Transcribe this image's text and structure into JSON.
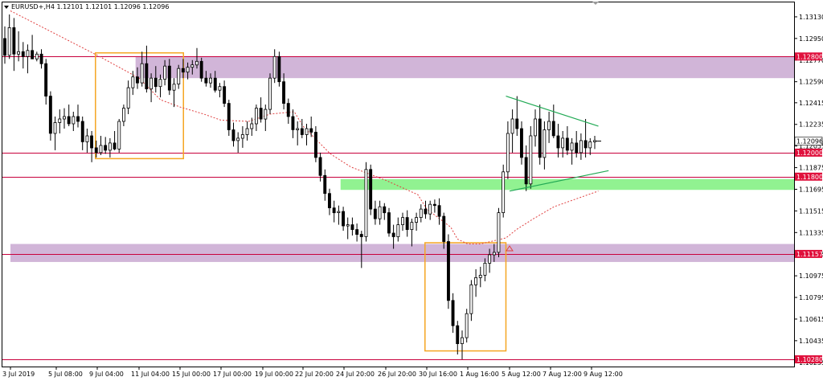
{
  "header": {
    "symbol_line": "EURUSD+,H4  1.12101 1.12101 1.12096 1.12096"
  },
  "colors": {
    "bull_fill": "#ffffff",
    "bear_fill": "#000000",
    "candle_line": "#000000",
    "zone_fill": "#c9a8d1",
    "support_zone_fill": "#7ef07e",
    "level_line": "#c8003c",
    "box_stroke": "#f5a623",
    "triangle_line": "#22aa55",
    "ma_line": "#e04040",
    "price_tag_red": "#e0103c",
    "grid_line": "#000000"
  },
  "chart_data": {
    "type": "candlestick",
    "title": "EURUSD+,H4",
    "ohlc_header": {
      "open": 1.12101,
      "high": 1.12101,
      "low": 1.12096,
      "close": 1.12096
    },
    "current_price": 1.12096,
    "ylim": [
      1.1022,
      1.1325
    ],
    "y_ticks": [
      "1.13130",
      "1.12950",
      "1.12770",
      "1.12590",
      "1.12415",
      "1.12235",
      "1.12055",
      "1.11875",
      "1.11695",
      "1.11515",
      "1.11335",
      "1.11155",
      "1.10975",
      "1.10795",
      "1.10615",
      "1.10435",
      "1.10255"
    ],
    "x_ticks": [
      "3 Jul 2019",
      "5 Jul 08:00",
      "9 Jul 04:00",
      "11 Jul 04:00",
      "15 Jul 00:00",
      "17 Jul 00:00",
      "19 Jul 00:00",
      "22 Jul 20:00",
      "24 Jul 20:00",
      "26 Jul 20:00",
      "30 Jul 16:00",
      "1 Aug 16:00",
      "5 Aug 12:00",
      "7 Aug 12:00",
      "9 Aug 12:00"
    ],
    "levels": [
      {
        "label": "1.12800",
        "value": 1.128
      },
      {
        "label": "1.12000",
        "value": 1.12
      },
      {
        "label": "1.11800",
        "value": 1.118
      },
      {
        "label": "1.11157",
        "value": 1.11157
      },
      {
        "label": "1.10280",
        "value": 1.1028
      }
    ],
    "zones": [
      {
        "name": "resistance-zone",
        "from": 1.1262,
        "to": 1.128,
        "start_date": "11 Jul 00:00"
      },
      {
        "name": "support-zone",
        "from": 1.1169,
        "to": 1.1178,
        "start_date": "24 Jul 16:00"
      },
      {
        "name": "lower-zone",
        "from": 1.1109,
        "to": 1.1124,
        "start_date": "3 Jul 2019"
      }
    ],
    "boxes": [
      {
        "name": "left-consolidation-box",
        "from_date": "9 Jul 00:00",
        "to_date": "15 Jul 04:00",
        "low": 1.1195,
        "high": 1.1283
      },
      {
        "name": "bottom-reversal-box",
        "from_date": "30 Jul 12:00",
        "to_date": "5 Aug 04:00",
        "low": 1.1035,
        "high": 1.1125
      }
    ],
    "triangle": {
      "upper": [
        {
          "date": "5 Aug 04:00",
          "price": 1.1247
        },
        {
          "date": "9 Aug 20:00",
          "price": 1.1222
        }
      ],
      "lower": [
        {
          "date": "5 Aug 12:00",
          "price": 1.1168
        },
        {
          "date": "10 Aug 08:00",
          "price": 1.1185
        }
      ]
    },
    "moving_average_points": [
      [
        "3 Jul 2019",
        1.1318
      ],
      [
        "9 Jul 04:00",
        1.1281
      ],
      [
        "11 Jul 04:00",
        1.1262
      ],
      [
        "13 Jul 04:00",
        1.1244
      ],
      [
        "15 Jul 00:00",
        1.1238
      ],
      [
        "16 Jul 04:00",
        1.1232
      ],
      [
        "17 Jul 00:00",
        1.1227
      ],
      [
        "18 Jul 08:00",
        1.1226
      ],
      [
        "19 Jul 16:00",
        1.1232
      ],
      [
        "22 Jul 00:00",
        1.1234
      ],
      [
        "22 Jul 20:00",
        1.1222
      ],
      [
        "24 Jul 04:00",
        1.1199
      ],
      [
        "25 Jul 04:00",
        1.1188
      ],
      [
        "26 Jul 20:00",
        1.1177
      ],
      [
        "29 Jul 20:00",
        1.1165
      ],
      [
        "30 Jul 16:00",
        1.1153
      ],
      [
        "31 Jul 20:00",
        1.1138
      ],
      [
        "1 Aug 04:00",
        1.1128
      ],
      [
        "1 Aug 16:00",
        1.1124
      ],
      [
        "2 Aug 20:00",
        1.1124
      ],
      [
        "5 Aug 04:00",
        1.1129
      ],
      [
        "5 Aug 20:00",
        1.1136
      ],
      [
        "6 Aug 16:00",
        1.1145
      ],
      [
        "7 Aug 16:00",
        1.1155
      ],
      [
        "8 Aug 20:00",
        1.1162
      ],
      [
        "9 Aug 20:00",
        1.1168
      ]
    ],
    "candles": [
      [
        1.1295,
        1.1305,
        1.1274,
        1.1281
      ],
      [
        1.1281,
        1.1315,
        1.1278,
        1.1304
      ],
      [
        1.1304,
        1.1312,
        1.1268,
        1.1282
      ],
      [
        1.1282,
        1.1301,
        1.1276,
        1.1284
      ],
      [
        1.1284,
        1.1292,
        1.127,
        1.128
      ],
      [
        1.128,
        1.129,
        1.1266,
        1.1285
      ],
      [
        1.1285,
        1.1298,
        1.1279,
        1.1278
      ],
      [
        1.1278,
        1.1284,
        1.1276,
        1.1282
      ],
      [
        1.1282,
        1.1286,
        1.127,
        1.1274
      ],
      [
        1.1274,
        1.1278,
        1.124,
        1.1247
      ],
      [
        1.1247,
        1.1251,
        1.121,
        1.1216
      ],
      [
        1.1216,
        1.123,
        1.1202,
        1.1225
      ],
      [
        1.1225,
        1.1236,
        1.1216,
        1.1228
      ],
      [
        1.1228,
        1.1237,
        1.122,
        1.123
      ],
      [
        1.123,
        1.124,
        1.1222,
        1.1224
      ],
      [
        1.1224,
        1.1234,
        1.1218,
        1.123
      ],
      [
        1.123,
        1.124,
        1.1221,
        1.1226
      ],
      [
        1.1226,
        1.123,
        1.1202,
        1.1209
      ],
      [
        1.1209,
        1.122,
        1.12,
        1.1214
      ],
      [
        1.1214,
        1.1218,
        1.1192,
        1.1204
      ],
      [
        1.1204,
        1.121,
        1.1196,
        1.12
      ],
      [
        1.12,
        1.1214,
        1.1198,
        1.1206
      ],
      [
        1.1206,
        1.1213,
        1.1199,
        1.1202
      ],
      [
        1.1202,
        1.1212,
        1.1196,
        1.1208
      ],
      [
        1.1208,
        1.1218,
        1.1202,
        1.1203
      ],
      [
        1.1203,
        1.1228,
        1.12,
        1.1226
      ],
      [
        1.1226,
        1.124,
        1.1222,
        1.1237
      ],
      [
        1.1237,
        1.126,
        1.1232,
        1.1254
      ],
      [
        1.1254,
        1.1268,
        1.1248,
        1.1263
      ],
      [
        1.1263,
        1.1271,
        1.1253,
        1.1258
      ],
      [
        1.1258,
        1.1284,
        1.1255,
        1.1274
      ],
      [
        1.1274,
        1.1289,
        1.125,
        1.1253
      ],
      [
        1.1253,
        1.1266,
        1.1242,
        1.1262
      ],
      [
        1.1262,
        1.1272,
        1.125,
        1.1255
      ],
      [
        1.1255,
        1.1265,
        1.1246,
        1.1261
      ],
      [
        1.1261,
        1.1277,
        1.1256,
        1.1272
      ],
      [
        1.1272,
        1.1278,
        1.1248,
        1.1252
      ],
      [
        1.1252,
        1.1262,
        1.1238,
        1.1257
      ],
      [
        1.1257,
        1.1273,
        1.1253,
        1.127
      ],
      [
        1.127,
        1.1278,
        1.1262,
        1.1267
      ],
      [
        1.1267,
        1.1275,
        1.1261,
        1.1271
      ],
      [
        1.1271,
        1.1277,
        1.1265,
        1.1273
      ],
      [
        1.1273,
        1.1287,
        1.127,
        1.1276
      ],
      [
        1.1276,
        1.1279,
        1.1259,
        1.1262
      ],
      [
        1.1262,
        1.1268,
        1.1255,
        1.1258
      ],
      [
        1.1258,
        1.1266,
        1.1254,
        1.1262
      ],
      [
        1.1262,
        1.1268,
        1.125,
        1.1252
      ],
      [
        1.1252,
        1.1258,
        1.1246,
        1.1255
      ],
      [
        1.1255,
        1.126,
        1.1238,
        1.1241
      ],
      [
        1.1241,
        1.1244,
        1.1214,
        1.1219
      ],
      [
        1.1219,
        1.1225,
        1.1205,
        1.121
      ],
      [
        1.121,
        1.1217,
        1.12,
        1.1212
      ],
      [
        1.1212,
        1.1222,
        1.1204,
        1.1215
      ],
      [
        1.1215,
        1.1226,
        1.121,
        1.122
      ],
      [
        1.122,
        1.1229,
        1.1214,
        1.1224
      ],
      [
        1.1224,
        1.124,
        1.1218,
        1.1237
      ],
      [
        1.1237,
        1.1246,
        1.1225,
        1.1228
      ],
      [
        1.1228,
        1.124,
        1.1218,
        1.1236
      ],
      [
        1.1236,
        1.1266,
        1.1232,
        1.1262
      ],
      [
        1.1262,
        1.1286,
        1.1258,
        1.128
      ],
      [
        1.128,
        1.1284,
        1.1255,
        1.1259
      ],
      [
        1.1259,
        1.1266,
        1.1236,
        1.1241
      ],
      [
        1.1241,
        1.1245,
        1.1224,
        1.123
      ],
      [
        1.123,
        1.1236,
        1.1212,
        1.1219
      ],
      [
        1.1219,
        1.1226,
        1.1206,
        1.122
      ],
      [
        1.122,
        1.1228,
        1.1212,
        1.1215
      ],
      [
        1.1215,
        1.1224,
        1.1206,
        1.122
      ],
      [
        1.122,
        1.123,
        1.1213,
        1.1217
      ],
      [
        1.1217,
        1.1222,
        1.1192,
        1.1196
      ],
      [
        1.1196,
        1.12,
        1.1176,
        1.1181
      ],
      [
        1.1181,
        1.1186,
        1.116,
        1.1166
      ],
      [
        1.1166,
        1.117,
        1.1148,
        1.1154
      ],
      [
        1.1154,
        1.116,
        1.1142,
        1.115
      ],
      [
        1.115,
        1.1156,
        1.114,
        1.1151
      ],
      [
        1.1151,
        1.1155,
        1.1135,
        1.1139
      ],
      [
        1.1139,
        1.1146,
        1.1128,
        1.114
      ],
      [
        1.114,
        1.1146,
        1.1131,
        1.1136
      ],
      [
        1.1136,
        1.1141,
        1.1126,
        1.1132
      ],
      [
        1.1132,
        1.1135,
        1.1104,
        1.113
      ],
      [
        1.113,
        1.1192,
        1.1126,
        1.1186
      ],
      [
        1.1186,
        1.119,
        1.1148,
        1.1153
      ],
      [
        1.1153,
        1.116,
        1.114,
        1.1145
      ],
      [
        1.1145,
        1.116,
        1.114,
        1.1155
      ],
      [
        1.1155,
        1.1158,
        1.1144,
        1.115
      ],
      [
        1.115,
        1.1154,
        1.113,
        1.1133
      ],
      [
        1.1133,
        1.114,
        1.112,
        1.113
      ],
      [
        1.113,
        1.1146,
        1.1126,
        1.114
      ],
      [
        1.114,
        1.115,
        1.1135,
        1.1146
      ],
      [
        1.1146,
        1.1152,
        1.113,
        1.1136
      ],
      [
        1.1136,
        1.1145,
        1.1122,
        1.1142
      ],
      [
        1.1142,
        1.115,
        1.1135,
        1.1146
      ],
      [
        1.1146,
        1.1157,
        1.1142,
        1.1153
      ],
      [
        1.1153,
        1.116,
        1.1145,
        1.1149
      ],
      [
        1.1149,
        1.116,
        1.1144,
        1.1157
      ],
      [
        1.1157,
        1.1161,
        1.115,
        1.1156
      ],
      [
        1.1156,
        1.1162,
        1.114,
        1.1147
      ],
      [
        1.1147,
        1.115,
        1.112,
        1.1126
      ],
      [
        1.1126,
        1.1132,
        1.107,
        1.1077
      ],
      [
        1.1077,
        1.1083,
        1.105,
        1.1056
      ],
      [
        1.1056,
        1.106,
        1.1032,
        1.1041
      ],
      [
        1.1041,
        1.1052,
        1.1028,
        1.1046
      ],
      [
        1.1046,
        1.107,
        1.1042,
        1.1066
      ],
      [
        1.1066,
        1.1094,
        1.106,
        1.109
      ],
      [
        1.109,
        1.1103,
        1.108,
        1.1096
      ],
      [
        1.1096,
        1.1105,
        1.1088,
        1.1098
      ],
      [
        1.1098,
        1.1112,
        1.1093,
        1.1108
      ],
      [
        1.1108,
        1.112,
        1.11,
        1.1115
      ],
      [
        1.1115,
        1.1124,
        1.1109,
        1.1117
      ],
      [
        1.1117,
        1.1154,
        1.1113,
        1.115
      ],
      [
        1.115,
        1.119,
        1.1146,
        1.1184
      ],
      [
        1.1184,
        1.1226,
        1.1178,
        1.1216
      ],
      [
        1.1216,
        1.1236,
        1.12,
        1.1228
      ],
      [
        1.1228,
        1.1247,
        1.1214,
        1.122
      ],
      [
        1.122,
        1.1226,
        1.119,
        1.1196
      ],
      [
        1.1196,
        1.1206,
        1.1168,
        1.1174
      ],
      [
        1.1174,
        1.1222,
        1.117,
        1.1214
      ],
      [
        1.1214,
        1.1236,
        1.1205,
        1.1228
      ],
      [
        1.1228,
        1.124,
        1.119,
        1.1196
      ],
      [
        1.1196,
        1.1226,
        1.1186,
        1.1219
      ],
      [
        1.1219,
        1.1234,
        1.1208,
        1.1226
      ],
      [
        1.1226,
        1.124,
        1.1212,
        1.1214
      ],
      [
        1.1214,
        1.1224,
        1.1196,
        1.1204
      ],
      [
        1.1204,
        1.1218,
        1.1196,
        1.1212
      ],
      [
        1.1212,
        1.1222,
        1.1198,
        1.1202
      ],
      [
        1.1202,
        1.1212,
        1.119,
        1.1208
      ],
      [
        1.1208,
        1.1218,
        1.1196,
        1.12
      ],
      [
        1.12,
        1.1216,
        1.1194,
        1.121
      ],
      [
        1.121,
        1.1228,
        1.1196,
        1.1204
      ],
      [
        1.1204,
        1.1212,
        1.1198,
        1.1209
      ],
      [
        1.1209,
        1.1214,
        1.1203,
        1.121
      ]
    ]
  }
}
